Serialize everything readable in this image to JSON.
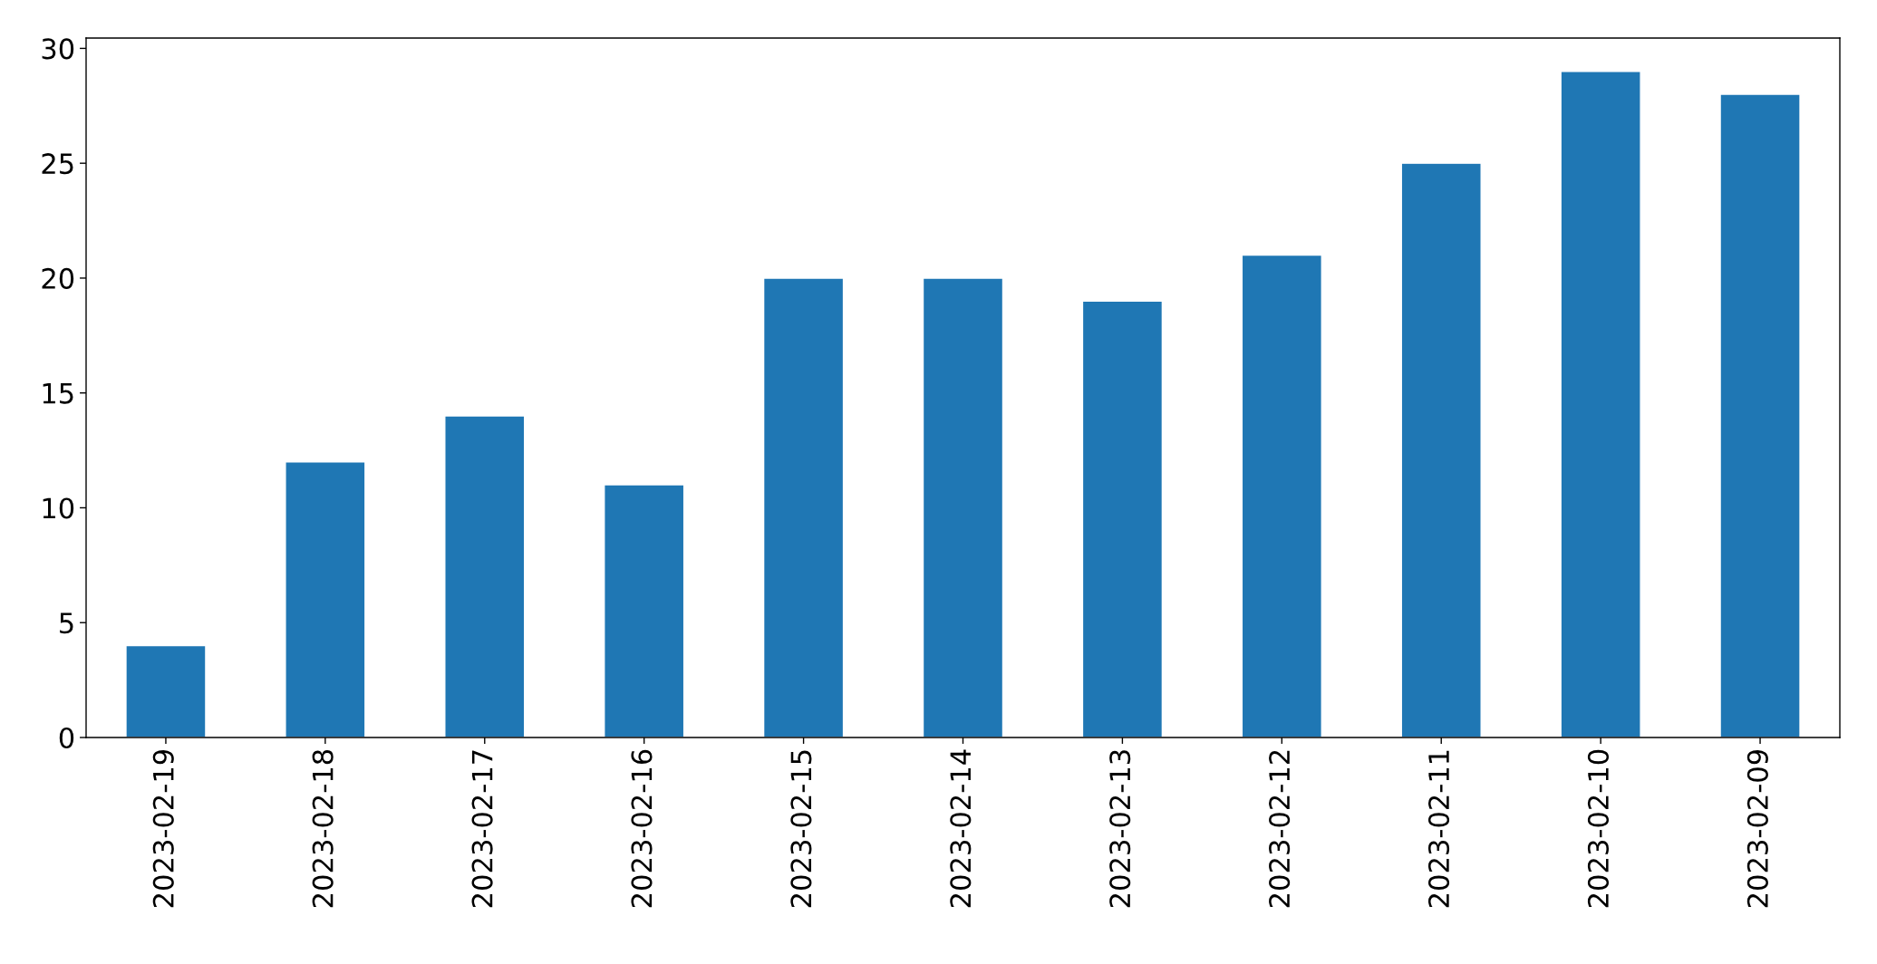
{
  "chart_data": {
    "type": "bar",
    "categories": [
      "2023-02-19",
      "2023-02-18",
      "2023-02-17",
      "2023-02-16",
      "2023-02-15",
      "2023-02-14",
      "2023-02-13",
      "2023-02-12",
      "2023-02-11",
      "2023-02-10",
      "2023-02-09"
    ],
    "values": [
      4,
      12,
      14,
      11,
      20,
      20,
      19,
      21,
      25,
      29,
      28
    ],
    "color": "#1f77b4",
    "ylim": [
      0,
      30.45
    ],
    "yticks": [
      0,
      5,
      10,
      15,
      20,
      25,
      30
    ],
    "grid": false
  }
}
